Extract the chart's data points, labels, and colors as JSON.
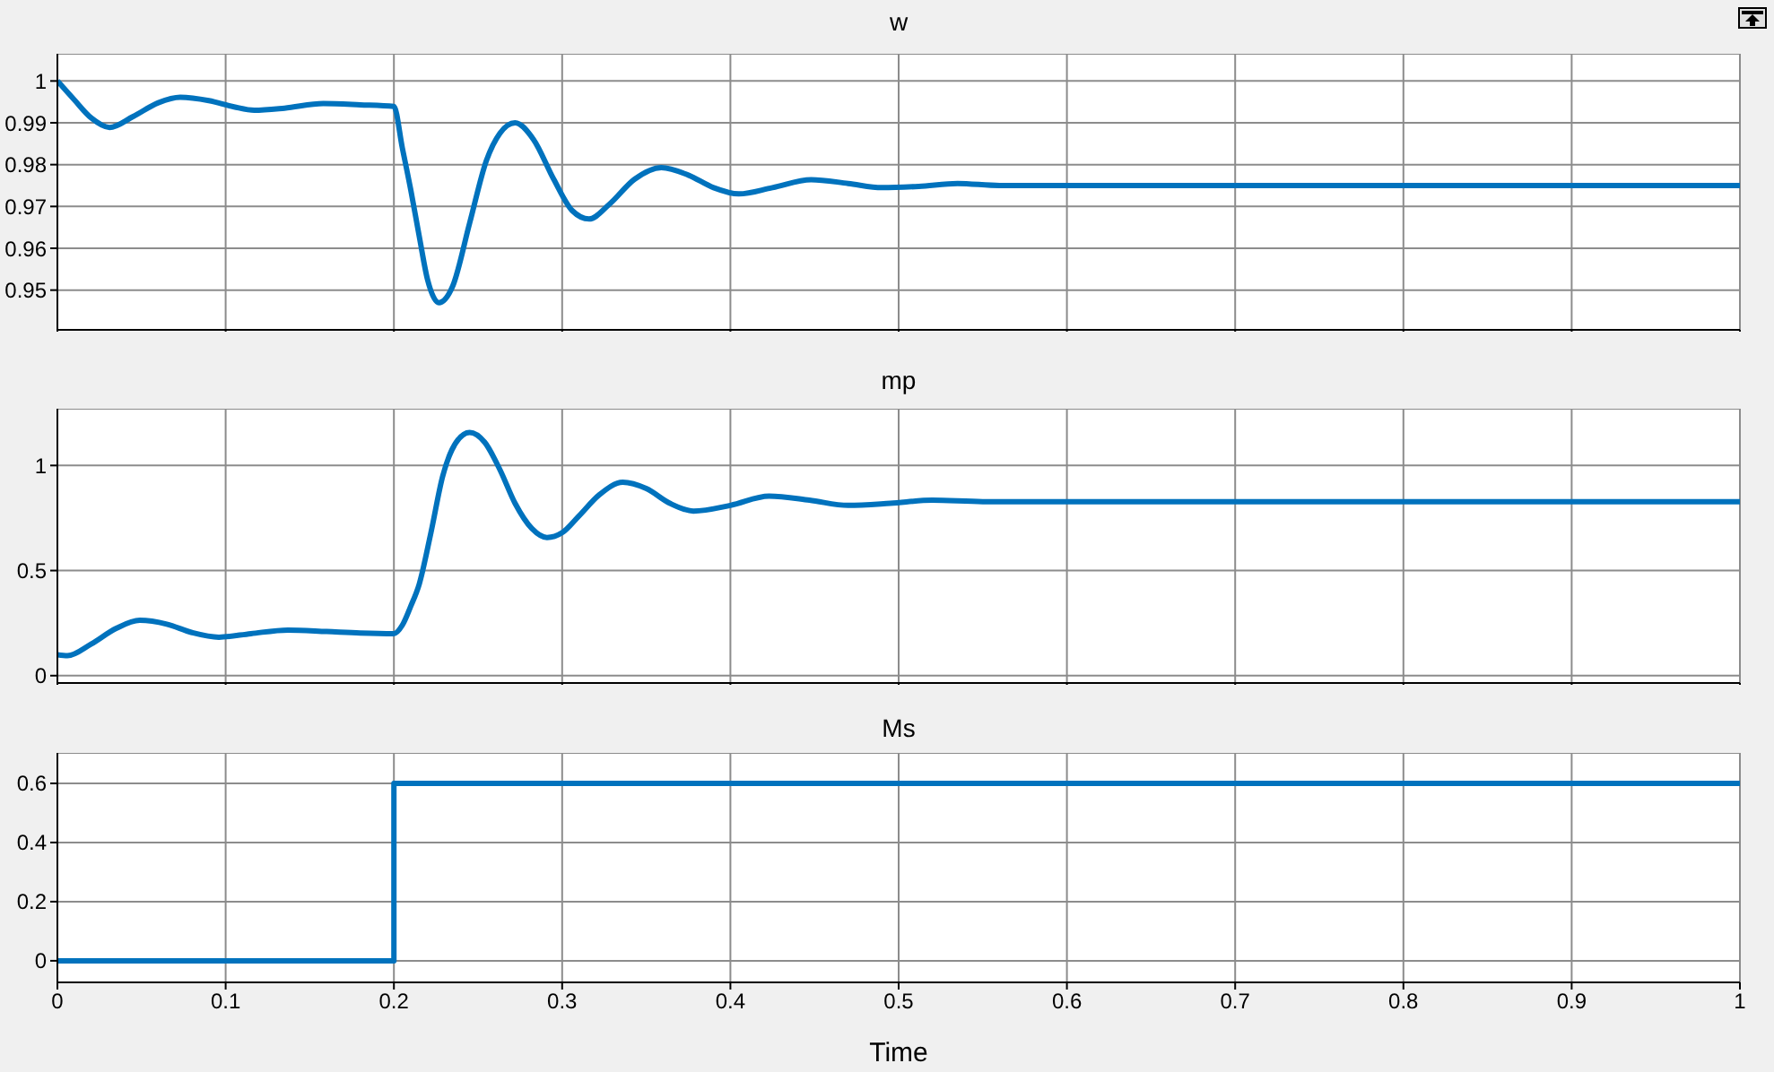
{
  "chart_data": [
    {
      "type": "line",
      "title": "w",
      "xlim": [
        0,
        1
      ],
      "xticks": [
        0,
        0.1,
        0.2,
        0.3,
        0.4,
        0.5,
        0.6,
        0.7,
        0.8,
        0.9,
        1
      ],
      "ylim": [
        0.9405,
        1.0065
      ],
      "yticks": [
        0.95,
        0.96,
        0.97,
        0.98,
        0.99,
        1
      ],
      "grid": true,
      "tick_labels": "y",
      "line_style": "solid",
      "marker": "none",
      "series": [
        {
          "color": "#0072bd",
          "x": [
            0,
            0.01,
            0.02,
            0.031,
            0.045,
            0.06,
            0.073,
            0.09,
            0.105,
            0.117,
            0.135,
            0.158,
            0.18,
            0.2,
            0.205,
            0.21,
            0.215,
            0.22,
            0.2267,
            0.235,
            0.245,
            0.255,
            0.263,
            0.272,
            0.283,
            0.295,
            0.306,
            0.316,
            0.328,
            0.343,
            0.359,
            0.375,
            0.39,
            0.405,
            0.425,
            0.448,
            0.47,
            0.49,
            0.512,
            0.535,
            0.56,
            0.6,
            0.7,
            0.8,
            0.9,
            1
          ],
          "values": [
            1.0,
            0.9955,
            0.9912,
            0.9889,
            0.9915,
            0.9948,
            0.9961,
            0.9953,
            0.9938,
            0.993,
            0.9935,
            0.9946,
            0.9943,
            0.9939,
            0.984,
            0.974,
            0.963,
            0.9525,
            0.947,
            0.951,
            0.966,
            0.981,
            0.9875,
            0.99,
            0.986,
            0.9765,
            0.969,
            0.967,
            0.9705,
            0.9765,
            0.9793,
            0.9775,
            0.9745,
            0.973,
            0.9745,
            0.9764,
            0.9755,
            0.9745,
            0.9748,
            0.9755,
            0.975,
            0.975,
            0.975,
            0.975,
            0.975,
            0.975
          ]
        }
      ]
    },
    {
      "type": "line",
      "title": "mp",
      "xlim": [
        0,
        1
      ],
      "xticks": [
        0,
        0.1,
        0.2,
        0.3,
        0.4,
        0.5,
        0.6,
        0.7,
        0.8,
        0.9,
        1
      ],
      "ylim": [
        -0.035,
        1.27
      ],
      "yticks": [
        0,
        0.5,
        1
      ],
      "grid": true,
      "tick_labels": "y",
      "line_style": "solid",
      "marker": "none",
      "series": [
        {
          "color": "#0072bd",
          "x": [
            0,
            0.006,
            0.02,
            0.035,
            0.049,
            0.065,
            0.08,
            0.096,
            0.115,
            0.137,
            0.16,
            0.18,
            0.2,
            0.205,
            0.21,
            0.215,
            0.222,
            0.229,
            0.237,
            0.245,
            0.254,
            0.263,
            0.272,
            0.282,
            0.291,
            0.3,
            0.31,
            0.322,
            0.336,
            0.35,
            0.364,
            0.378,
            0.4,
            0.423,
            0.447,
            0.47,
            0.495,
            0.52,
            0.55,
            0.6,
            0.7,
            0.8,
            0.9,
            1
          ],
          "values": [
            0.1,
            0.095,
            0.15,
            0.225,
            0.263,
            0.245,
            0.205,
            0.183,
            0.2,
            0.217,
            0.21,
            0.203,
            0.2,
            0.24,
            0.33,
            0.434,
            0.68,
            0.949,
            1.11,
            1.157,
            1.11,
            0.98,
            0.82,
            0.7,
            0.657,
            0.68,
            0.76,
            0.86,
            0.92,
            0.89,
            0.82,
            0.783,
            0.81,
            0.854,
            0.835,
            0.81,
            0.82,
            0.835,
            0.828,
            0.828,
            0.828,
            0.828,
            0.828,
            0.828
          ]
        }
      ]
    },
    {
      "type": "step",
      "title": "Ms",
      "xlabel": "Time",
      "xlim": [
        0,
        1
      ],
      "xticks": [
        0,
        0.1,
        0.2,
        0.3,
        0.4,
        0.5,
        0.6,
        0.7,
        0.8,
        0.9,
        1
      ],
      "ylim": [
        -0.073,
        0.703
      ],
      "yticks": [
        0,
        0.2,
        0.4,
        0.6
      ],
      "grid": true,
      "line_style": "solid",
      "marker": "none",
      "series": [
        {
          "color": "#0072bd",
          "x": [
            0,
            0.2,
            1
          ],
          "values": [
            0,
            0.6,
            0.6
          ]
        }
      ]
    }
  ]
}
